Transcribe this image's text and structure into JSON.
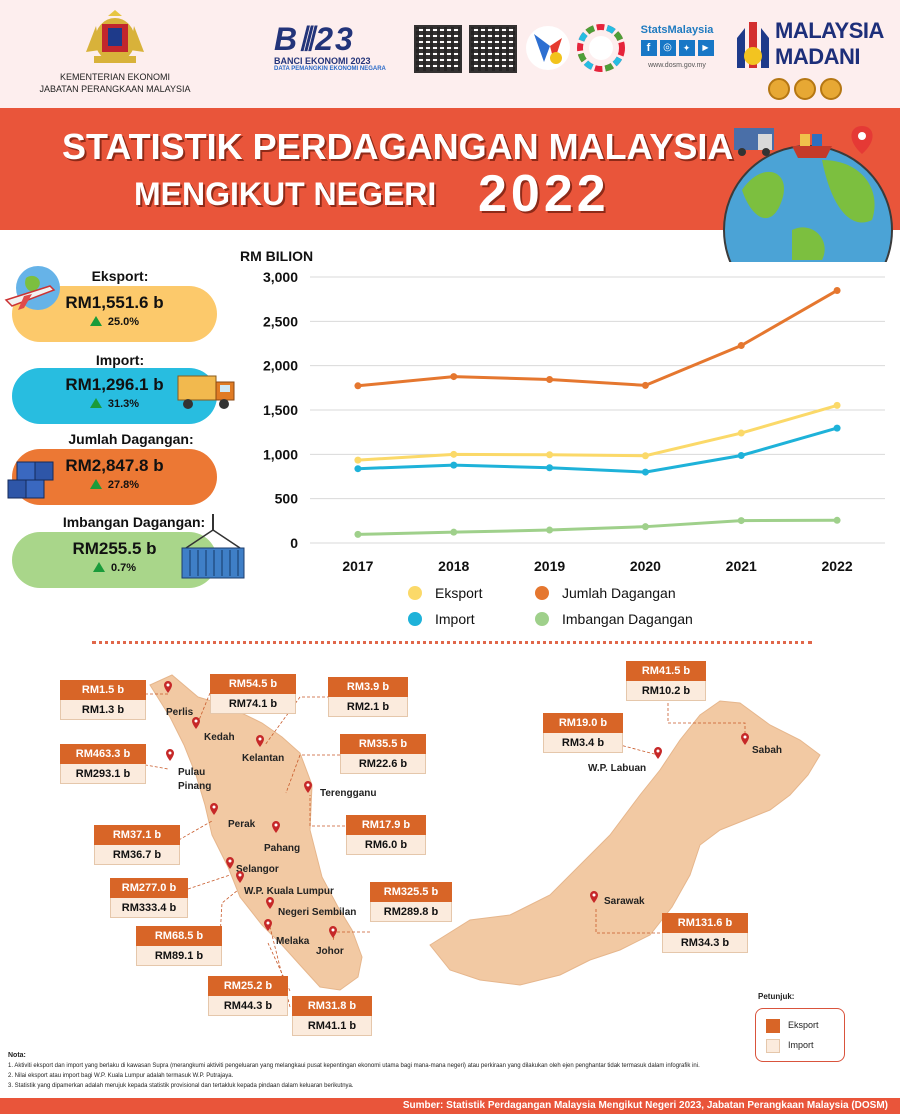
{
  "header": {
    "agency_line1": "KEMENTERIAN EKONOMI",
    "agency_line2": "JABATAN PERANGKAAN MALAYSIA",
    "banci_title": "BANCI EKONOMI 2023",
    "banci_sub": "DATA PEMANGKIN EKONOMI NEGARA",
    "statsmalaysia": "StatsMalaysia",
    "url": "www.dosm.gov.my",
    "madani_line1": "MALAYSIA",
    "madani_line2": "MADANI"
  },
  "banner": {
    "title_line1": "STATISTIK PERDAGANGAN MALAYSIA",
    "title_line2": "MENGIKUT NEGERI",
    "year": "2022"
  },
  "stats": [
    {
      "label": "Eksport:",
      "value": "RM1,551.6 b",
      "change": "25.0%",
      "color": "#fcc96b"
    },
    {
      "label": "Import:",
      "value": "RM1,296.1 b",
      "change": "31.3%",
      "color": "#28bde0"
    },
    {
      "label": "Jumlah Dagangan:",
      "value": "RM2,847.8 b",
      "change": "27.8%",
      "color": "#ec7834"
    },
    {
      "label": "Imbangan Dagangan:",
      "value": "RM255.5 b",
      "change": "0.7%",
      "color": "#a9d68a"
    }
  ],
  "chart_data": {
    "type": "line",
    "ylabel": "RM BILION",
    "ylim": [
      0,
      3000
    ],
    "yticks": [
      "3,000",
      "2,500",
      "2,000",
      "1,500",
      "1,000",
      "500",
      "0"
    ],
    "categories": [
      "2017",
      "2018",
      "2019",
      "2020",
      "2021",
      "2022"
    ],
    "legend_position": "bottom",
    "grid": true,
    "series": [
      {
        "name": "Eksport",
        "color": "#fbd969",
        "values": [
          935,
          1000,
          995,
          984,
          1240,
          1552
        ]
      },
      {
        "name": "Import",
        "color": "#1eb2d9",
        "values": [
          838,
          878,
          849,
          800,
          987,
          1296
        ]
      },
      {
        "name": "Jumlah Dagangan",
        "color": "#e5772f",
        "values": [
          1773,
          1877,
          1844,
          1778,
          2227,
          2848
        ]
      },
      {
        "name": "Imbangan Dagangan",
        "color": "#9fd08b",
        "values": [
          97,
          122,
          146,
          184,
          253,
          256
        ]
      }
    ]
  },
  "states": [
    {
      "name": "Perlis",
      "export": "RM1.5 b",
      "import": "RM1.3 b"
    },
    {
      "name": "Kedah",
      "export": "RM54.5 b",
      "import": "RM74.1 b"
    },
    {
      "name": "Kelantan",
      "export": "RM3.9 b",
      "import": "RM2.1 b"
    },
    {
      "name": "Pulau Pinang",
      "export": "RM463.3 b",
      "import": "RM293.1 b"
    },
    {
      "name": "Terengganu",
      "export": "RM35.5 b",
      "import": "RM22.6 b"
    },
    {
      "name": "Perak",
      "export": "RM37.1 b",
      "import": "RM36.7 b"
    },
    {
      "name": "Pahang",
      "export": "RM17.9 b",
      "import": "RM6.0 b"
    },
    {
      "name": "Selangor",
      "export": "RM277.0 b",
      "import": "RM333.4 b"
    },
    {
      "name": "W.P. Kuala Lumpur",
      "export": "RM68.5 b",
      "import": "RM89.1 b"
    },
    {
      "name": "Johor",
      "export": "RM325.5 b",
      "import": "RM289.8 b"
    },
    {
      "name": "Negeri Sembilan",
      "export": "RM25.2 b",
      "import": "RM44.3 b"
    },
    {
      "name": "Melaka",
      "export": "RM31.8 b",
      "import": "RM41.1 b"
    },
    {
      "name": "Sabah",
      "export": "RM41.5 b",
      "import": "RM10.2 b"
    },
    {
      "name": "W.P. Labuan",
      "export": "RM19.0 b",
      "import": "RM3.4 b"
    },
    {
      "name": "Sarawak",
      "export": "RM131.6 b",
      "import": "RM34.3 b"
    }
  ],
  "map_legend": {
    "title": "Petunjuk:",
    "export": "Eksport",
    "import": "Import"
  },
  "notes": {
    "title": "Nota:",
    "items": [
      "1.  Aktiviti eksport dan import yang berlaku di kawasan Supra (merangkumi aktiviti pengeluaran yang melangkaui pusat kepentingan ekonomi utama bagi mana-mana negeri) atau perkiraan yang dilakukan oleh ejen penghantar tidak termasuk dalam infografik ini.",
      "2.  Nilai eksport atau import bagi W.P. Kuala Lumpur adalah termasuk W.P. Putrajaya.",
      "3.  Statistik yang dipamerkan adalah merujuk kepada statistik provisional dan tertakluk kepada pindaan dalam keluaran berikutnya."
    ]
  },
  "source": "Sumber: Statistik Perdagangan Malaysia Mengikut Negeri 2023, Jabatan Perangkaan Malaysia (DOSM)"
}
